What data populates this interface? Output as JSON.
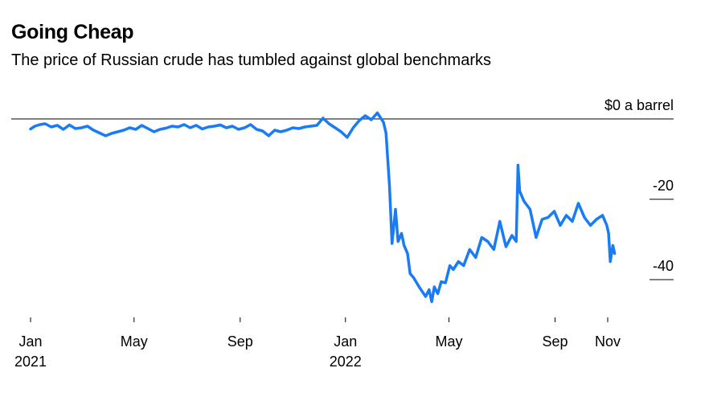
{
  "title": "Going Cheap",
  "subtitle": "The price of Russian crude has tumbled against global benchmarks",
  "chart_data": {
    "type": "line",
    "title": "Going Cheap",
    "subtitle": "The price of Russian crude has tumbled against global benchmarks",
    "xlabel": "",
    "ylabel": "",
    "ylim": [
      -46,
      4
    ],
    "y_ticks": [
      {
        "value": 0,
        "label": "$0 a barrel"
      },
      {
        "value": -20,
        "label": "-20"
      },
      {
        "value": -40,
        "label": "-40"
      }
    ],
    "x_ticks": [
      {
        "date": "2021-01-01",
        "label": "Jan",
        "sublabel": "2021"
      },
      {
        "date": "2021-05-01",
        "label": "May",
        "sublabel": ""
      },
      {
        "date": "2021-09-01",
        "label": "Sep",
        "sublabel": ""
      },
      {
        "date": "2022-01-01",
        "label": "Jan",
        "sublabel": "2022"
      },
      {
        "date": "2022-05-01",
        "label": "May",
        "sublabel": ""
      },
      {
        "date": "2022-09-01",
        "label": "Sep",
        "sublabel": ""
      },
      {
        "date": "2022-11-01",
        "label": "Nov",
        "sublabel": ""
      }
    ],
    "line_color": "#1a7cf5",
    "series": [
      {
        "x": [
          "2021-01-01",
          "2021-01-06",
          "2021-01-12",
          "2021-01-18",
          "2021-01-25",
          "2021-02-01",
          "2021-02-08",
          "2021-02-15",
          "2021-02-22",
          "2021-03-01",
          "2021-03-08",
          "2021-03-15",
          "2021-03-22",
          "2021-03-29",
          "2021-04-05",
          "2021-04-12",
          "2021-04-19",
          "2021-04-26",
          "2021-05-03",
          "2021-05-10",
          "2021-05-17",
          "2021-05-24",
          "2021-05-31",
          "2021-06-07",
          "2021-06-14",
          "2021-06-21",
          "2021-06-28",
          "2021-07-05",
          "2021-07-12",
          "2021-07-19",
          "2021-07-26",
          "2021-08-02",
          "2021-08-09",
          "2021-08-16",
          "2021-08-23",
          "2021-08-30",
          "2021-09-06",
          "2021-09-13",
          "2021-09-20",
          "2021-09-27",
          "2021-10-04",
          "2021-10-11",
          "2021-10-18",
          "2021-10-25",
          "2021-11-01",
          "2021-11-08",
          "2021-11-15",
          "2021-11-22",
          "2021-11-29",
          "2021-12-06",
          "2021-12-13",
          "2021-12-20",
          "2021-12-27",
          "2022-01-03",
          "2022-01-10",
          "2022-01-17",
          "2022-01-24",
          "2022-01-31",
          "2022-02-07",
          "2022-02-14",
          "2022-02-17",
          "2022-02-21",
          "2022-02-24",
          "2022-02-28",
          "2022-03-03",
          "2022-03-07",
          "2022-03-10",
          "2022-03-14",
          "2022-03-17",
          "2022-03-21",
          "2022-03-28",
          "2022-04-04",
          "2022-04-08",
          "2022-04-11",
          "2022-04-14",
          "2022-04-18",
          "2022-04-22",
          "2022-04-27",
          "2022-05-02",
          "2022-05-06",
          "2022-05-12",
          "2022-05-18",
          "2022-05-25",
          "2022-06-01",
          "2022-06-08",
          "2022-06-15",
          "2022-06-22",
          "2022-06-29",
          "2022-07-06",
          "2022-07-13",
          "2022-07-18",
          "2022-07-20",
          "2022-07-22",
          "2022-07-27",
          "2022-08-03",
          "2022-08-10",
          "2022-08-17",
          "2022-08-24",
          "2022-08-31",
          "2022-09-07",
          "2022-09-14",
          "2022-09-21",
          "2022-09-28",
          "2022-10-05",
          "2022-10-12",
          "2022-10-19",
          "2022-10-26",
          "2022-10-31",
          "2022-11-02",
          "2022-11-04",
          "2022-11-07",
          "2022-11-09"
        ],
        "values": [
          -2.5,
          -1.8,
          -1.4,
          -1.2,
          -2.0,
          -1.6,
          -2.6,
          -1.5,
          -2.4,
          -2.2,
          -1.8,
          -2.8,
          -3.5,
          -4.2,
          -3.6,
          -3.2,
          -2.8,
          -2.2,
          -2.6,
          -1.6,
          -2.4,
          -3.2,
          -2.6,
          -2.3,
          -1.8,
          -2.0,
          -1.4,
          -2.2,
          -1.6,
          -2.5,
          -2.0,
          -1.8,
          -1.5,
          -2.2,
          -1.8,
          -2.6,
          -2.2,
          -1.4,
          -2.6,
          -3.0,
          -4.2,
          -2.8,
          -3.2,
          -2.8,
          -2.2,
          -2.4,
          -2.0,
          -1.8,
          -1.6,
          0.2,
          -1.2,
          -2.2,
          -3.2,
          -4.6,
          -2.2,
          -0.4,
          0.8,
          -0.2,
          1.5,
          -0.8,
          -3.5,
          -16.5,
          -31.0,
          -22.5,
          -30.5,
          -28.5,
          -31.5,
          -33.5,
          -38.5,
          -39.5,
          -42.0,
          -44.2,
          -42.5,
          -45.5,
          -41.8,
          -43.5,
          -40.5,
          -40.8,
          -36.5,
          -37.5,
          -35.5,
          -36.5,
          -32.5,
          -34.5,
          -29.5,
          -30.5,
          -32.5,
          -25.5,
          -31.8,
          -29.0,
          -30.5,
          -11.5,
          -18.0,
          -20.5,
          -22.5,
          -29.5,
          -25.0,
          -24.5,
          -23.0,
          -26.5,
          -24.0,
          -25.5,
          -21.0,
          -24.5,
          -26.5,
          -25.0,
          -24.0,
          -26.5,
          -28.5,
          -35.5,
          -31.5,
          -33.5
        ]
      }
    ]
  }
}
